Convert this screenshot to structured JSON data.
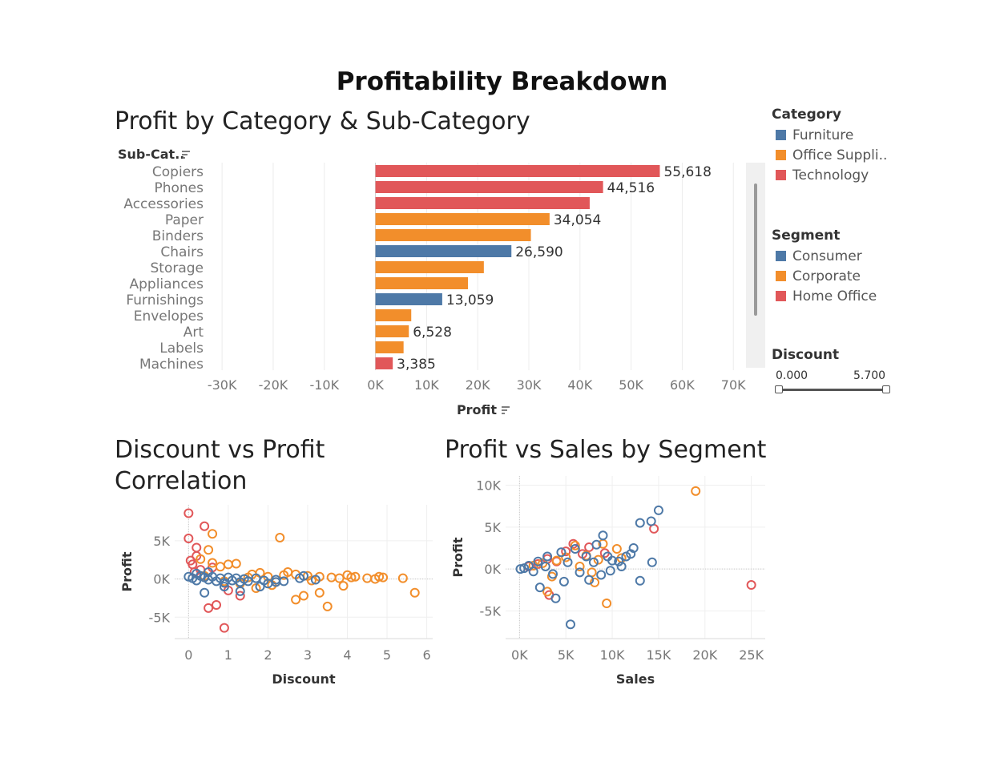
{
  "dashboard": {
    "title": "Profitability Breakdown"
  },
  "colors": {
    "furniture": "#4e79a7",
    "office_supplies": "#f28e2b",
    "technology": "#e15759",
    "consumer": "#4e79a7",
    "corporate": "#f28e2b",
    "home_office": "#e15759"
  },
  "legends": {
    "category": {
      "title": "Category",
      "items": [
        {
          "label": "Furniture",
          "color": "#4e79a7"
        },
        {
          "label": "Office Suppli..",
          "color": "#f28e2b"
        },
        {
          "label": "Technology",
          "color": "#e15759"
        }
      ]
    },
    "segment": {
      "title": "Segment",
      "items": [
        {
          "label": "Consumer",
          "color": "#4e79a7"
        },
        {
          "label": "Corporate",
          "color": "#f28e2b"
        },
        {
          "label": "Home Office",
          "color": "#e15759"
        }
      ]
    },
    "discount": {
      "title": "Discount",
      "min_label": "0.000",
      "max_label": "5.700"
    }
  },
  "chart_data": [
    {
      "type": "bar",
      "orientation": "horizontal",
      "title": "Profit by Category & Sub-Category",
      "ylabel": "Sub-Cat..",
      "xlabel": "Profit",
      "xlim": [
        -33000,
        72000
      ],
      "xticks": [
        -30000,
        -20000,
        -10000,
        0,
        10000,
        20000,
        30000,
        40000,
        50000,
        60000,
        70000
      ],
      "xtick_labels": [
        "-30K",
        "-20K",
        "-10K",
        "0K",
        "10K",
        "20K",
        "30K",
        "40K",
        "50K",
        "60K",
        "70K"
      ],
      "grid": true,
      "scrollbar": true,
      "categories": [
        "Copiers",
        "Phones",
        "Accessories",
        "Paper",
        "Binders",
        "Chairs",
        "Storage",
        "Appliances",
        "Furnishings",
        "Envelopes",
        "Art",
        "Labels",
        "Machines"
      ],
      "values": [
        55618,
        44516,
        41900,
        34054,
        30400,
        26590,
        21200,
        18100,
        13059,
        7000,
        6528,
        5500,
        3385
      ],
      "bar_category": [
        "Technology",
        "Technology",
        "Technology",
        "Office Supplies",
        "Office Supplies",
        "Furniture",
        "Office Supplies",
        "Office Supplies",
        "Furniture",
        "Office Supplies",
        "Office Supplies",
        "Office Supplies",
        "Technology"
      ],
      "data_labels": [
        "55,618",
        "44,516",
        "",
        "34,054",
        "",
        "26,590",
        "",
        "",
        "13,059",
        "",
        "6,528",
        "",
        "3,385"
      ]
    },
    {
      "type": "scatter",
      "title": "Discount vs Profit Correlation",
      "xlabel": "Discount",
      "ylabel": "Profit",
      "xlim": [
        -0.35,
        6.15
      ],
      "ylim": [
        -7800,
        9700
      ],
      "xticks": [
        0,
        1,
        2,
        3,
        4,
        5,
        6
      ],
      "xtick_labels": [
        "0",
        "1",
        "2",
        "3",
        "4",
        "5",
        "6"
      ],
      "yticks": [
        -5000,
        0,
        5000
      ],
      "ytick_labels": [
        "-5K",
        "0K",
        "5K"
      ],
      "grid": true,
      "series": [
        {
          "name": "Technology",
          "points": [
            [
              0,
              8600
            ],
            [
              0,
              5300
            ],
            [
              0.2,
              4100
            ],
            [
              0.4,
              6900
            ],
            [
              0.2,
              3000
            ],
            [
              0.1,
              1900
            ],
            [
              0.5,
              -3800
            ],
            [
              0.7,
              -3400
            ],
            [
              0.9,
              -6400
            ],
            [
              0.3,
              1200
            ],
            [
              0.6,
              1500
            ],
            [
              1.0,
              -1500
            ],
            [
              1.3,
              -2200
            ],
            [
              0.05,
              2400
            ],
            [
              0.15,
              900
            ]
          ]
        },
        {
          "name": "Office Supplies",
          "points": [
            [
              0.6,
              5900
            ],
            [
              2.3,
              5400
            ],
            [
              0.5,
              3800
            ],
            [
              0.3,
              2600
            ],
            [
              0.6,
              2100
            ],
            [
              1.0,
              1900
            ],
            [
              1.2,
              2000
            ],
            [
              0.8,
              1600
            ],
            [
              1.6,
              600
            ],
            [
              1.8,
              800
            ],
            [
              2.0,
              300
            ],
            [
              2.2,
              -400
            ],
            [
              2.5,
              900
            ],
            [
              2.7,
              600
            ],
            [
              3.0,
              400
            ],
            [
              3.3,
              300
            ],
            [
              3.6,
              200
            ],
            [
              3.8,
              100
            ],
            [
              4.0,
              500
            ],
            [
              4.2,
              300
            ],
            [
              4.5,
              100
            ],
            [
              4.8,
              300
            ],
            [
              4.9,
              200
            ],
            [
              5.4,
              100
            ],
            [
              5.7,
              -1800
            ],
            [
              3.5,
              -3600
            ],
            [
              2.7,
              -2700
            ],
            [
              2.9,
              -2200
            ],
            [
              3.3,
              -1800
            ],
            [
              3.9,
              -900
            ],
            [
              1.7,
              -1200
            ],
            [
              2.1,
              -800
            ],
            [
              1.3,
              -600
            ],
            [
              0.9,
              -300
            ],
            [
              0.4,
              400
            ],
            [
              1.5,
              200
            ],
            [
              2.4,
              500
            ],
            [
              3.1,
              -200
            ],
            [
              4.1,
              200
            ],
            [
              4.7,
              0
            ]
          ]
        },
        {
          "name": "Furniture",
          "points": [
            [
              0,
              300
            ],
            [
              0.1,
              100
            ],
            [
              0.2,
              -200
            ],
            [
              0.3,
              400
            ],
            [
              0.4,
              200
            ],
            [
              0.5,
              -100
            ],
            [
              0.6,
              300
            ],
            [
              0.7,
              -300
            ],
            [
              0.8,
              100
            ],
            [
              0.9,
              -500
            ],
            [
              1.0,
              200
            ],
            [
              1.1,
              -200
            ],
            [
              1.2,
              100
            ],
            [
              1.3,
              -400
            ],
            [
              1.4,
              0
            ],
            [
              1.5,
              -300
            ],
            [
              1.7,
              100
            ],
            [
              1.9,
              -200
            ],
            [
              2.0,
              -600
            ],
            [
              2.2,
              -100
            ],
            [
              2.4,
              -300
            ],
            [
              2.8,
              100
            ],
            [
              2.9,
              400
            ],
            [
              3.2,
              -100
            ],
            [
              0.4,
              -1800
            ],
            [
              0.9,
              -1000
            ],
            [
              1.3,
              -1600
            ],
            [
              1.8,
              -1000
            ],
            [
              2.2,
              -400
            ],
            [
              0.2,
              700
            ],
            [
              0.5,
              900
            ]
          ]
        }
      ]
    },
    {
      "type": "scatter",
      "title": "Profit vs Sales by Segment",
      "xlabel": "Sales",
      "ylabel": "Profit",
      "xlim": [
        -1500,
        26500
      ],
      "ylim": [
        -8300,
        11100
      ],
      "xticks": [
        0,
        5000,
        10000,
        15000,
        20000,
        25000
      ],
      "xtick_labels": [
        "0K",
        "5K",
        "10K",
        "15K",
        "20K",
        "25K"
      ],
      "yticks": [
        -5000,
        0,
        5000,
        10000
      ],
      "ytick_labels": [
        "-5K",
        "0K",
        "5K",
        "10K"
      ],
      "grid": true,
      "series": [
        {
          "name": "Home Office",
          "points": [
            [
              25000,
              -1900
            ],
            [
              14500,
              4800
            ],
            [
              5800,
              3000
            ],
            [
              3200,
              -3100
            ],
            [
              7500,
              2600
            ],
            [
              2000,
              600
            ],
            [
              4000,
              900
            ],
            [
              6800,
              1800
            ],
            [
              3000,
              1200
            ],
            [
              9200,
              1900
            ],
            [
              1000,
              300
            ],
            [
              5000,
              2100
            ]
          ]
        },
        {
          "name": "Corporate",
          "points": [
            [
              19000,
              9300
            ],
            [
              9400,
              -4100
            ],
            [
              8100,
              -1600
            ],
            [
              3000,
              -2700
            ],
            [
              10500,
              2400
            ],
            [
              7200,
              1600
            ],
            [
              6000,
              2800
            ],
            [
              5000,
              1400
            ],
            [
              4000,
              1000
            ],
            [
              2500,
              700
            ],
            [
              1500,
              400
            ],
            [
              8500,
              1100
            ],
            [
              11000,
              1300
            ],
            [
              9000,
              3000
            ],
            [
              6500,
              300
            ],
            [
              3500,
              -900
            ],
            [
              7800,
              -400
            ]
          ]
        },
        {
          "name": "Consumer",
          "points": [
            [
              15000,
              7000
            ],
            [
              14200,
              5700
            ],
            [
              13000,
              5500
            ],
            [
              14300,
              800
            ],
            [
              12000,
              1800
            ],
            [
              12300,
              2500
            ],
            [
              11500,
              1500
            ],
            [
              10000,
              1000
            ],
            [
              9000,
              4000
            ],
            [
              8300,
              2900
            ],
            [
              9800,
              -200
            ],
            [
              10700,
              900
            ],
            [
              13000,
              -1400
            ],
            [
              5500,
              -6600
            ],
            [
              3900,
              -3500
            ],
            [
              2200,
              -2200
            ],
            [
              4800,
              -1500
            ],
            [
              6500,
              -400
            ],
            [
              7500,
              -1300
            ],
            [
              8800,
              -700
            ],
            [
              4500,
              2000
            ],
            [
              6000,
              2400
            ],
            [
              7200,
              1500
            ],
            [
              3000,
              1500
            ],
            [
              2000,
              900
            ],
            [
              1000,
              400
            ],
            [
              500,
              100
            ],
            [
              100,
              0
            ],
            [
              1500,
              -300
            ],
            [
              2800,
              300
            ],
            [
              3600,
              -600
            ],
            [
              5200,
              800
            ],
            [
              8000,
              800
            ],
            [
              9500,
              1500
            ],
            [
              11000,
              300
            ]
          ]
        }
      ]
    }
  ]
}
